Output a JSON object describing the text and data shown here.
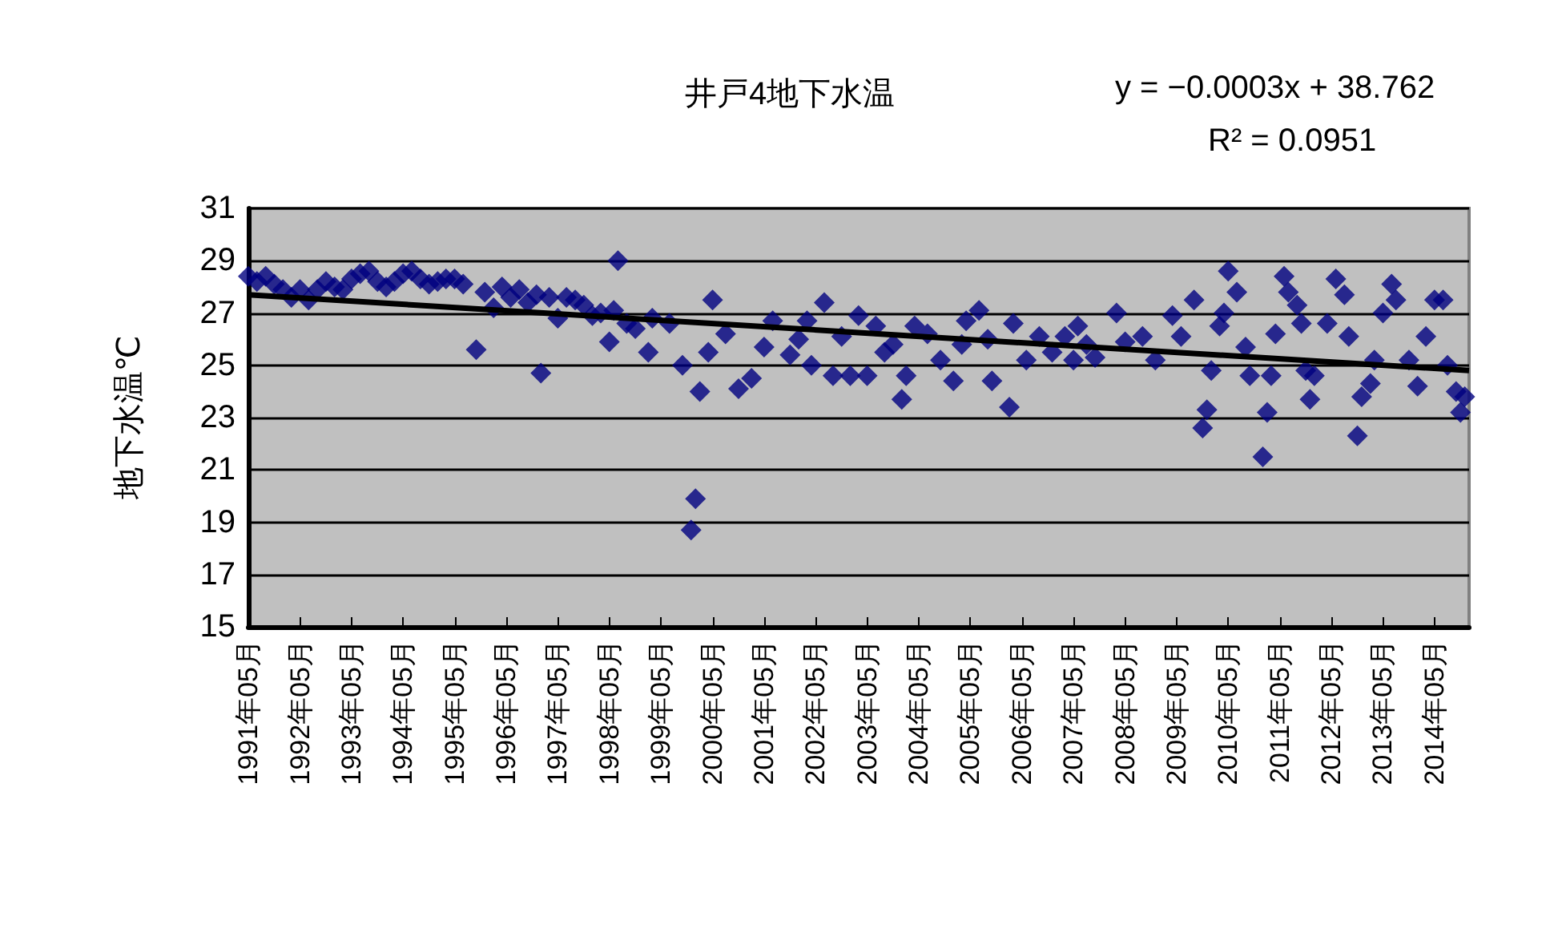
{
  "chart_data": {
    "type": "scatter",
    "title": "井戸4地下水温",
    "ylabel": "地下水温℃",
    "annotations": [
      "y = −0.0003x + 38.762",
      "R² = 0.0951"
    ],
    "xlim": [
      "1991-05",
      "2015-01"
    ],
    "xticks": [
      {
        "value": "1991-05",
        "label": "1991年05月"
      },
      {
        "value": "1992-05",
        "label": "1992年05月"
      },
      {
        "value": "1993-05",
        "label": "1993年05月"
      },
      {
        "value": "1994-05",
        "label": "1994年05月"
      },
      {
        "value": "1995-05",
        "label": "1995年05月"
      },
      {
        "value": "1996-05",
        "label": "1996年05月"
      },
      {
        "value": "1997-05",
        "label": "1997年05月"
      },
      {
        "value": "1998-05",
        "label": "1998年05月"
      },
      {
        "value": "1999-05",
        "label": "1999年05月"
      },
      {
        "value": "2000-05",
        "label": "2000年05月"
      },
      {
        "value": "2001-05",
        "label": "2001年05月"
      },
      {
        "value": "2002-05",
        "label": "2002年05月"
      },
      {
        "value": "2003-05",
        "label": "2003年05月"
      },
      {
        "value": "2004-05",
        "label": "2004年05月"
      },
      {
        "value": "2005-05",
        "label": "2005年05月"
      },
      {
        "value": "2006-05",
        "label": "2006年05月"
      },
      {
        "value": "2007-05",
        "label": "2007年05月"
      },
      {
        "value": "2008-05",
        "label": "2008年05月"
      },
      {
        "value": "2009-05",
        "label": "2009年05月"
      },
      {
        "value": "2010-05",
        "label": "2010年05月"
      },
      {
        "value": "2011-05",
        "label": "2011年05月"
      },
      {
        "value": "2012-05",
        "label": "2012年05月"
      },
      {
        "value": "2013-05",
        "label": "2013年05月"
      },
      {
        "value": "2014-05",
        "label": "2014年05月"
      }
    ],
    "ylim": [
      15,
      31
    ],
    "yticks": [
      15,
      17,
      19,
      21,
      23,
      25,
      27,
      29,
      31
    ],
    "grid": "y",
    "marker": "diamond",
    "series": [
      {
        "color": "#000080",
        "x": [
          "1991-05",
          "1991-07",
          "1991-09",
          "1991-11",
          "1992-01",
          "1992-03",
          "1992-05",
          "1992-07",
          "1992-09",
          "1992-11",
          "1993-01",
          "1993-03",
          "1993-05",
          "1993-07",
          "1993-09",
          "1993-11",
          "1994-01",
          "1994-03",
          "1994-05",
          "1994-07",
          "1994-09",
          "1994-11",
          "1995-01",
          "1995-03",
          "1995-05",
          "1995-07",
          "1995-10",
          "1995-12",
          "1996-02",
          "1996-04",
          "1996-06",
          "1996-08",
          "1996-10",
          "1996-12",
          "1997-01",
          "1997-03",
          "1997-05",
          "1997-07",
          "1997-09",
          "1997-11",
          "1998-01",
          "1998-03",
          "1998-05",
          "1998-06",
          "1998-07",
          "1998-09",
          "1998-11",
          "1999-02",
          "1999-03",
          "1999-07",
          "1999-10",
          "1999-12",
          "2000-01",
          "2000-02",
          "2000-04",
          "2000-05",
          "2000-08",
          "2000-11",
          "2001-02",
          "2001-05",
          "2001-07",
          "2001-11",
          "2002-01",
          "2002-03",
          "2002-04",
          "2002-07",
          "2002-09",
          "2002-11",
          "2003-01",
          "2003-03",
          "2003-05",
          "2003-07",
          "2003-09",
          "2003-11",
          "2004-01",
          "2004-02",
          "2004-04",
          "2004-07",
          "2004-10",
          "2005-01",
          "2005-03",
          "2005-04",
          "2005-07",
          "2005-09",
          "2005-10",
          "2006-02",
          "2006-03",
          "2006-06",
          "2006-09",
          "2006-12",
          "2007-03",
          "2007-05",
          "2007-06",
          "2007-08",
          "2007-10",
          "2008-03",
          "2008-05",
          "2008-09",
          "2008-12",
          "2009-04",
          "2009-06",
          "2009-09",
          "2009-11",
          "2009-12",
          "2010-01",
          "2010-03",
          "2010-04",
          "2010-05",
          "2010-07",
          "2010-09",
          "2010-10",
          "2011-01",
          "2011-02",
          "2011-03",
          "2011-04",
          "2011-06",
          "2011-07",
          "2011-09",
          "2011-10",
          "2011-11",
          "2011-12",
          "2012-01",
          "2012-04",
          "2012-06",
          "2012-08",
          "2012-09",
          "2012-11",
          "2012-12",
          "2013-02",
          "2013-03",
          "2013-05",
          "2013-07",
          "2013-08",
          "2013-11",
          "2014-01",
          "2014-03",
          "2014-05",
          "2014-07",
          "2014-08",
          "2014-10",
          "2014-11",
          "2014-12"
        ],
        "values": [
          28.4,
          28.2,
          28.4,
          28.1,
          27.9,
          27.6,
          27.9,
          27.5,
          27.9,
          28.2,
          28.0,
          27.9,
          28.3,
          28.5,
          28.6,
          28.2,
          28.0,
          28.2,
          28.5,
          28.6,
          28.3,
          28.1,
          28.2,
          28.3,
          28.3,
          28.1,
          25.6,
          27.8,
          27.2,
          28.0,
          27.6,
          27.9,
          27.4,
          27.7,
          24.7,
          27.6,
          26.8,
          27.6,
          27.5,
          27.3,
          26.9,
          27.0,
          25.9,
          27.1,
          29.0,
          26.6,
          26.4,
          25.5,
          26.8,
          26.6,
          25.0,
          18.7,
          19.9,
          24.0,
          25.5,
          27.5,
          26.2,
          24.1,
          24.5,
          25.7,
          26.7,
          25.4,
          26.0,
          26.7,
          25.0,
          27.4,
          24.6,
          26.1,
          24.6,
          26.9,
          24.6,
          26.5,
          25.5,
          25.8,
          23.7,
          24.6,
          26.5,
          26.2,
          25.2,
          24.4,
          25.8,
          26.7,
          27.1,
          26.0,
          24.4,
          23.4,
          26.6,
          25.2,
          26.1,
          25.5,
          26.1,
          25.2,
          26.5,
          25.8,
          25.3,
          27.0,
          25.9,
          26.1,
          25.2,
          26.9,
          26.1,
          27.5,
          22.6,
          23.3,
          24.8,
          26.5,
          27.0,
          28.6,
          27.8,
          25.7,
          24.6,
          21.5,
          23.2,
          24.6,
          26.2,
          28.4,
          27.8,
          27.3,
          26.6,
          24.8,
          23.7,
          24.6,
          26.6,
          28.3,
          27.7,
          26.1,
          22.3,
          23.8,
          24.3,
          25.2,
          27.0,
          28.1,
          27.5,
          25.2,
          24.2,
          26.1,
          27.5,
          27.5,
          25.0,
          24.0,
          23.2,
          23.8
        ]
      },
      {
        "type": "line",
        "color": "#000000",
        "marker": "none",
        "x": [
          "1991-05",
          "2015-01"
        ],
        "values": [
          27.7,
          24.8
        ]
      }
    ]
  }
}
